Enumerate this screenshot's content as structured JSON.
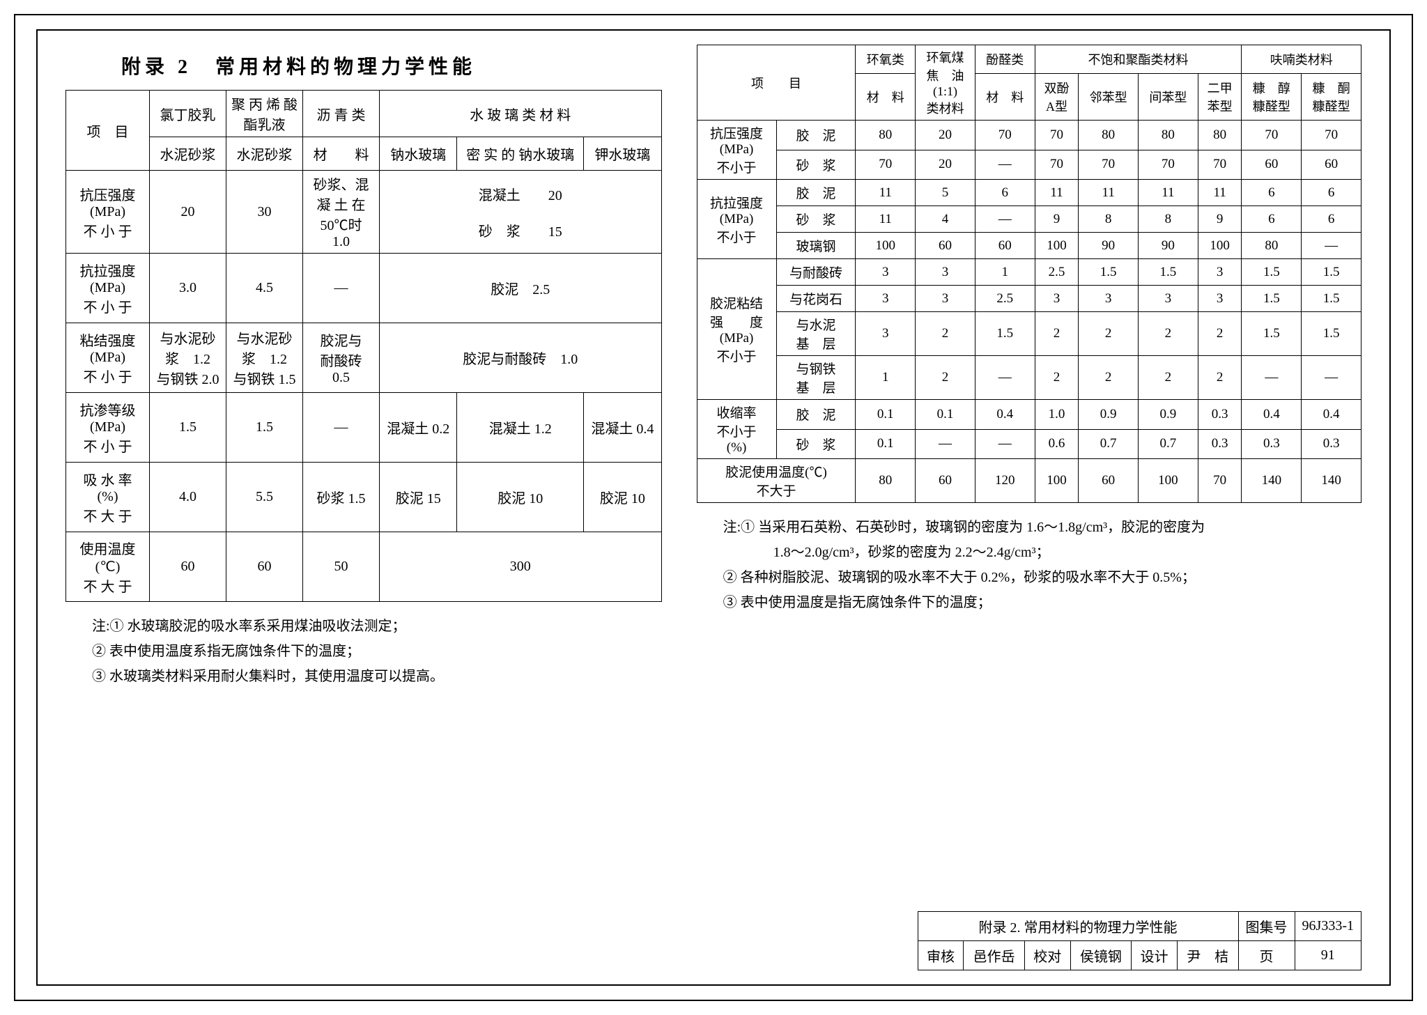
{
  "title": "附录 2　常用材料的物理力学性能",
  "left_table": {
    "header_row1": [
      "项　目",
      "氯丁胶乳",
      "聚 丙 烯\n酸酯乳液",
      "沥 青 类",
      "水 玻 璃 类 材 料"
    ],
    "header_row2": [
      "水泥砂浆",
      "水泥砂浆",
      "材　　料",
      "钠水玻璃",
      "密 实 的\n钠水玻璃",
      "钾水玻璃"
    ],
    "rows": [
      {
        "label": "抗压强度\n(MPa)\n不 小 于",
        "c1": "20",
        "c2": "30",
        "c3": "砂浆、混\n凝 土 在\n50℃时\n1.0",
        "c4": "混凝土　　20\n\n砂　浆　　15"
      },
      {
        "label": "抗拉强度\n(MPa)\n不 小 于",
        "c1": "3.0",
        "c2": "4.5",
        "c3": "—",
        "c4": "胶泥　2.5"
      },
      {
        "label": "粘结强度\n(MPa)\n不 小 于",
        "c1": "与水泥砂\n浆　1.2\n与钢铁 2.0",
        "c2": "与水泥砂\n浆　1.2\n与钢铁 1.5",
        "c3": "胶泥与\n耐酸砖\n0.5",
        "c4": "胶泥与耐酸砖　1.0"
      },
      {
        "label": "抗渗等级\n(MPa)\n不 小 于",
        "c1": "1.5",
        "c2": "1.5",
        "c3": "—",
        "c4_cells": [
          "混凝土 0.2",
          "混凝土 1.2",
          "混凝土 0.4"
        ]
      },
      {
        "label": "吸 水 率\n(%)\n不 大 于",
        "c1": "4.0",
        "c2": "5.5",
        "c3": "砂浆 1.5",
        "c4_cells": [
          "胶泥 15",
          "胶泥 10",
          "胶泥 10"
        ]
      },
      {
        "label": "使用温度\n(℃)\n不 大 于",
        "c1": "60",
        "c2": "60",
        "c3": "50",
        "c4": "300"
      }
    ]
  },
  "left_notes": [
    "注:① 水玻璃胶泥的吸水率系采用煤油吸收法测定；",
    "② 表中使用温度系指无腐蚀条件下的温度；",
    "③ 水玻璃类材料采用耐火集料时，其使用温度可以提高。"
  ],
  "right_table": {
    "header_top": [
      "项　　目",
      "环氧类",
      "环氧煤\n焦　油\n(1:1)\n类材料",
      "酚醛类",
      "不饱和聚酯类材料",
      "呋喃类材料"
    ],
    "header_sub": [
      "材　料",
      "材　料",
      "双酚\nA型",
      "邻苯型",
      "间苯型",
      "二甲\n苯型",
      "糠　醇\n糠醛型",
      "糠　酮\n糠醛型"
    ],
    "rows": [
      {
        "g": "抗压强度\n(MPa)\n不小于",
        "sub": "胶　泥",
        "v": [
          "80",
          "20",
          "70",
          "70",
          "80",
          "80",
          "80",
          "70",
          "70"
        ]
      },
      {
        "sub": "砂　浆",
        "v": [
          "70",
          "20",
          "—",
          "70",
          "70",
          "70",
          "70",
          "60",
          "60"
        ]
      },
      {
        "g": "抗拉强度\n(MPa)\n不小于",
        "sub": "胶　泥",
        "v": [
          "11",
          "5",
          "6",
          "11",
          "11",
          "11",
          "11",
          "6",
          "6"
        ]
      },
      {
        "sub": "砂　浆",
        "v": [
          "11",
          "4",
          "—",
          "9",
          "8",
          "8",
          "9",
          "6",
          "6"
        ]
      },
      {
        "sub": "玻璃钢",
        "v": [
          "100",
          "60",
          "60",
          "100",
          "90",
          "90",
          "100",
          "80",
          "—"
        ]
      },
      {
        "g": "胶泥粘结\n强　　度\n(MPa)\n不小于",
        "sub": "与耐酸砖",
        "v": [
          "3",
          "3",
          "1",
          "2.5",
          "1.5",
          "1.5",
          "3",
          "1.5",
          "1.5"
        ]
      },
      {
        "sub": "与花岗石",
        "v": [
          "3",
          "3",
          "2.5",
          "3",
          "3",
          "3",
          "3",
          "1.5",
          "1.5"
        ]
      },
      {
        "sub": "与水泥\n基　层",
        "v": [
          "3",
          "2",
          "1.5",
          "2",
          "2",
          "2",
          "2",
          "1.5",
          "1.5"
        ]
      },
      {
        "sub": "与钢铁\n基　层",
        "v": [
          "1",
          "2",
          "—",
          "2",
          "2",
          "2",
          "2",
          "—",
          "—"
        ]
      },
      {
        "g": "收缩率\n不小于\n(%)",
        "sub": "胶　泥",
        "v": [
          "0.1",
          "0.1",
          "0.4",
          "1.0",
          "0.9",
          "0.9",
          "0.3",
          "0.4",
          "0.4"
        ]
      },
      {
        "sub": "砂　浆",
        "v": [
          "0.1",
          "—",
          "—",
          "0.6",
          "0.7",
          "0.7",
          "0.3",
          "0.3",
          "0.3"
        ]
      },
      {
        "g": "胶泥使用温度(℃)\n不大于",
        "sub": "",
        "v": [
          "80",
          "60",
          "120",
          "100",
          "60",
          "100",
          "70",
          "140",
          "140"
        ]
      }
    ]
  },
  "right_notes": [
    "注:① 当采用石英粉、石英砂时，玻璃钢的密度为 1.6～1.8g/cm³，胶泥的密度为",
    "　　1.8～2.0g/cm³，砂浆的密度为 2.2～2.4g/cm³；",
    "② 各种树脂胶泥、玻璃钢的吸水率不大于 0.2%，砂浆的吸水率不大于 0.5%；",
    "③ 表中使用温度是指无腐蚀条件下的温度；"
  ],
  "title_block": {
    "caption": "附录 2. 常用材料的物理力学性能",
    "set_label": "图集号",
    "set_no": "96J333-1",
    "row2": [
      "审核",
      "邑作岳",
      "校对",
      "侯镜钢",
      "设计",
      "尹　桔",
      "页",
      "91"
    ]
  }
}
